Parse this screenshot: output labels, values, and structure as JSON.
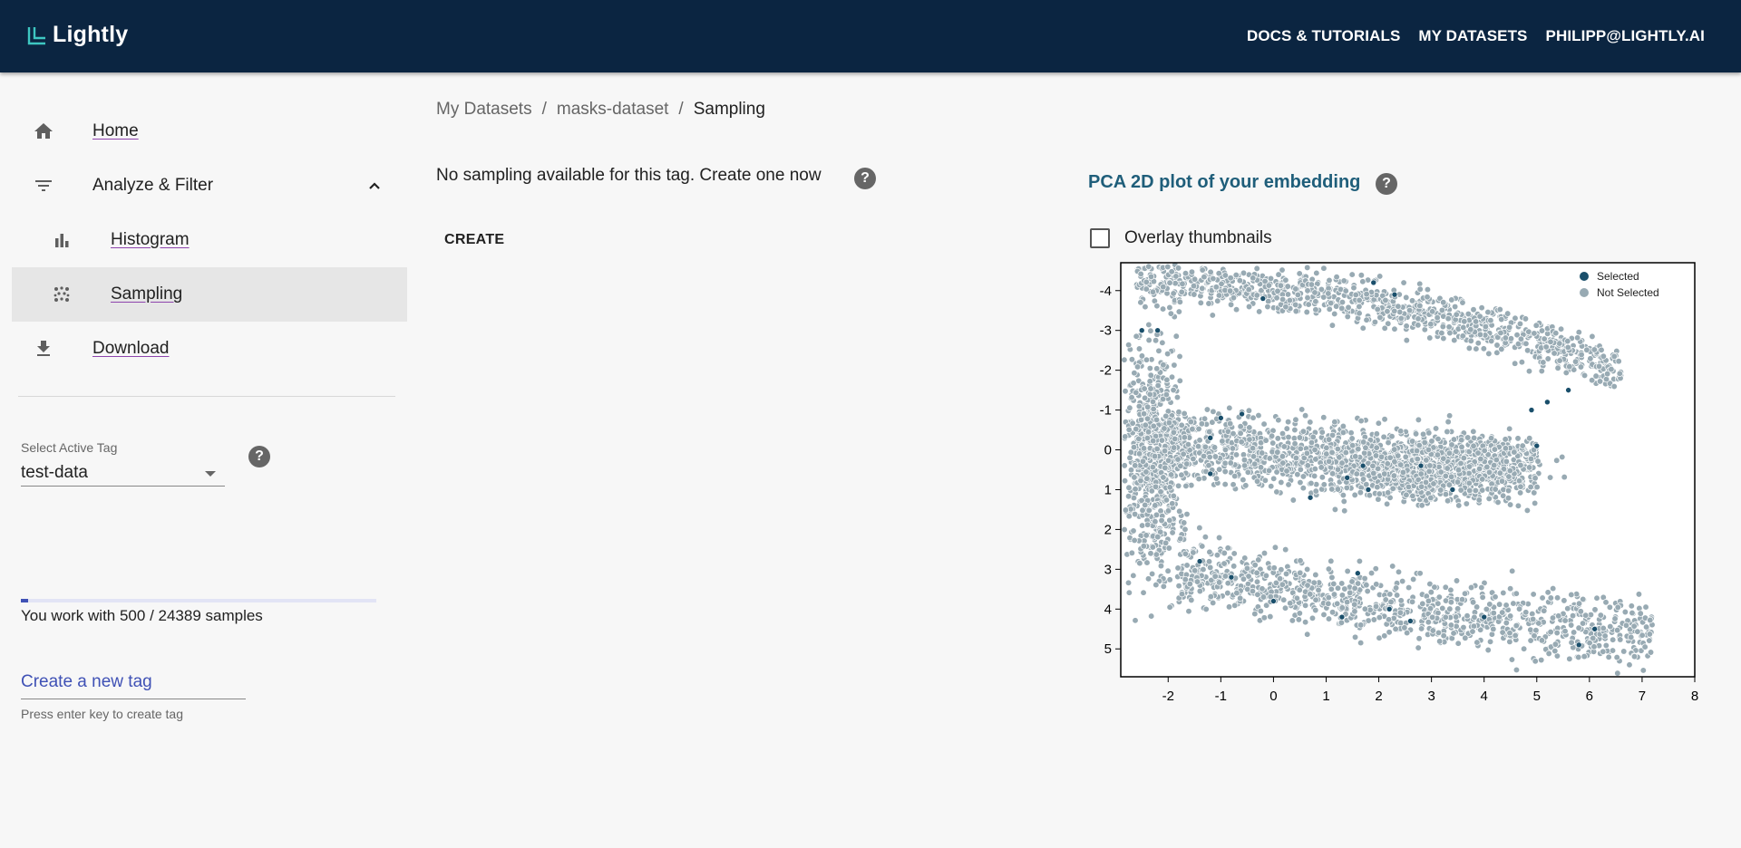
{
  "header": {
    "brand": "Lightly",
    "nav": [
      "DOCS & TUTORIALS",
      "MY DATASETS",
      "PHILIPP@LIGHTLY.AI"
    ]
  },
  "sidebar": {
    "items": [
      {
        "label": "Home",
        "icon": "home-icon"
      },
      {
        "label": "Analyze & Filter",
        "icon": "filter-icon"
      },
      {
        "label": "Histogram",
        "icon": "bar-chart-icon"
      },
      {
        "label": "Sampling",
        "icon": "scatter-icon"
      },
      {
        "label": "Download",
        "icon": "download-icon"
      }
    ],
    "tag_label": "Select Active Tag",
    "tag_value": "test-data",
    "progress_fraction": 0.0205,
    "samples_text": "You work with 500 / 24389 samples",
    "new_tag_placeholder": "Create a new tag",
    "new_tag_hint": "Press enter key to create tag"
  },
  "breadcrumb": {
    "items": [
      "My Datasets",
      "masks-dataset",
      "Sampling"
    ],
    "separator": "/"
  },
  "main": {
    "no_sampling_text": "No sampling available for this tag. Create one now",
    "create_label": "CREATE"
  },
  "pca": {
    "title": "PCA 2D plot of your embedding",
    "overlay_label": "Overlay thumbnails"
  },
  "chart_data": {
    "type": "scatter",
    "title": "",
    "xlabel": "",
    "ylabel": "",
    "xlim": [
      -2.9,
      8.0
    ],
    "ylim": [
      -4.7,
      5.7
    ],
    "y_inverted": true,
    "x_ticks": [
      -2,
      -1,
      0,
      1,
      2,
      3,
      4,
      5,
      6,
      7,
      8
    ],
    "y_ticks": [
      -4,
      -3,
      -2,
      -1,
      0,
      1,
      2,
      3,
      4,
      5
    ],
    "legend": [
      {
        "name": "Selected",
        "color": "#1a4f6b"
      },
      {
        "name": "Not Selected",
        "color": "#98aab3"
      }
    ],
    "legend_position": "top-right",
    "series": [
      {
        "name": "Selected",
        "color": "#1a4f6b",
        "points": [
          [
            -2.2,
            -3.0
          ],
          [
            -2.5,
            -3.0
          ],
          [
            -0.2,
            -3.8
          ],
          [
            1.9,
            -4.2
          ],
          [
            2.3,
            -3.9
          ],
          [
            -1.0,
            -0.8
          ],
          [
            -0.6,
            -0.9
          ],
          [
            -1.2,
            -0.3
          ],
          [
            -1.2,
            0.6
          ],
          [
            0.7,
            1.2
          ],
          [
            1.4,
            0.7
          ],
          [
            1.7,
            0.4
          ],
          [
            1.8,
            1.0
          ],
          [
            2.8,
            0.4
          ],
          [
            3.4,
            1.0
          ],
          [
            4.9,
            -1.0
          ],
          [
            5.2,
            -1.2
          ],
          [
            5.6,
            -1.5
          ],
          [
            5.0,
            -0.1
          ],
          [
            1.6,
            3.1
          ],
          [
            -0.8,
            3.2
          ],
          [
            -1.4,
            2.8
          ],
          [
            0.0,
            3.8
          ],
          [
            1.3,
            4.2
          ],
          [
            2.2,
            4.0
          ],
          [
            2.6,
            4.3
          ],
          [
            4.0,
            4.2
          ],
          [
            5.8,
            4.9
          ],
          [
            6.1,
            4.5
          ]
        ]
      }
    ],
    "not_selected_point_count": 4471
  }
}
